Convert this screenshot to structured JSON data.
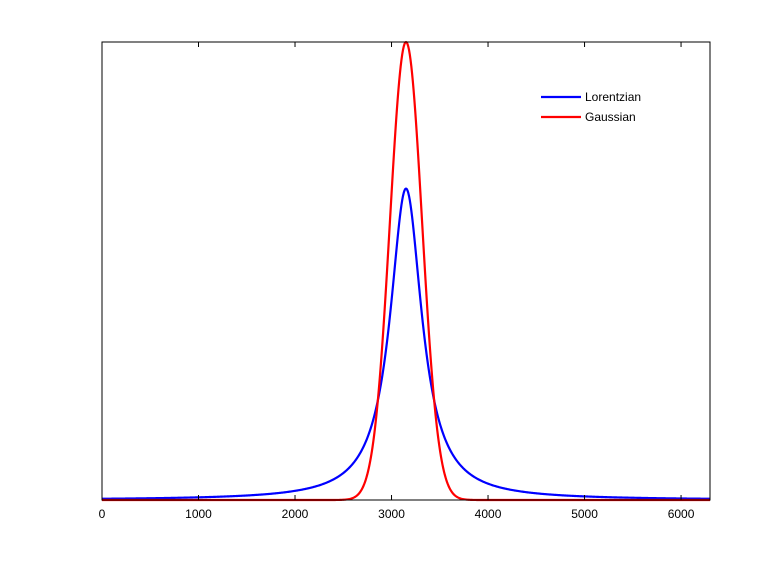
{
  "chart_data": {
    "type": "line",
    "title": "",
    "xlabel": "",
    "ylabel": "",
    "xlim": [
      0,
      6300
    ],
    "ylim": [
      0,
      1
    ],
    "grid": false,
    "legend_position": "top-right",
    "x_ticks": [
      0,
      1000,
      2000,
      3000,
      4000,
      5000,
      6000
    ],
    "x_tick_labels": [
      "0",
      "1000",
      "2000",
      "3000",
      "4000",
      "5000",
      "6000"
    ],
    "y_ticks": [],
    "series": [
      {
        "name": "Lorentzian",
        "color": "#0000ff",
        "shape": "lorentzian",
        "center": 3150,
        "amplitude": 0.68,
        "half_width": 200
      },
      {
        "name": "Gaussian",
        "color": "#ff0000",
        "shape": "gaussian",
        "center": 3150,
        "amplitude": 1.0,
        "sigma": 167
      }
    ]
  }
}
